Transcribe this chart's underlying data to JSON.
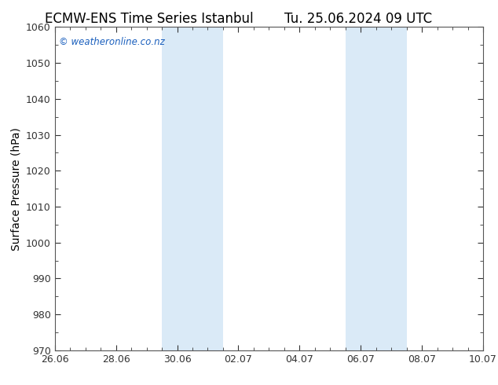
{
  "title_left": "ECMW-ENS Time Series Istanbul",
  "title_right": "Tu. 25.06.2024 09 UTC",
  "ylabel": "Surface Pressure (hPa)",
  "ylim": [
    970,
    1060
  ],
  "yticks": [
    970,
    980,
    990,
    1000,
    1010,
    1020,
    1030,
    1040,
    1050,
    1060
  ],
  "xlabel_ticks": [
    "26.06",
    "28.06",
    "30.06",
    "02.07",
    "04.07",
    "06.07",
    "08.07",
    "10.07"
  ],
  "x_tick_positions": [
    0,
    2,
    4,
    6,
    8,
    10,
    12,
    14
  ],
  "x_minor_positions": [
    0,
    0.5,
    1,
    1.5,
    2,
    2.5,
    3,
    3.5,
    4,
    4.5,
    5,
    5.5,
    6,
    6.5,
    7,
    7.5,
    8,
    8.5,
    9,
    9.5,
    10,
    10.5,
    11,
    11.5,
    12,
    12.5,
    13,
    13.5,
    14
  ],
  "shade_regions": [
    {
      "x_start": 3.5,
      "x_end": 5.5,
      "color": "#daeaf7"
    },
    {
      "x_start": 9.5,
      "x_end": 11.5,
      "color": "#daeaf7"
    }
  ],
  "watermark_text": "© weatheronline.co.nz",
  "watermark_color": "#1a5fbd",
  "background_color": "#ffffff",
  "plot_bg_color": "#ffffff",
  "spine_color": "#555555",
  "tick_color": "#333333",
  "title_fontsize": 12,
  "label_fontsize": 10,
  "tick_fontsize": 9,
  "x_min": 0,
  "x_max": 14
}
